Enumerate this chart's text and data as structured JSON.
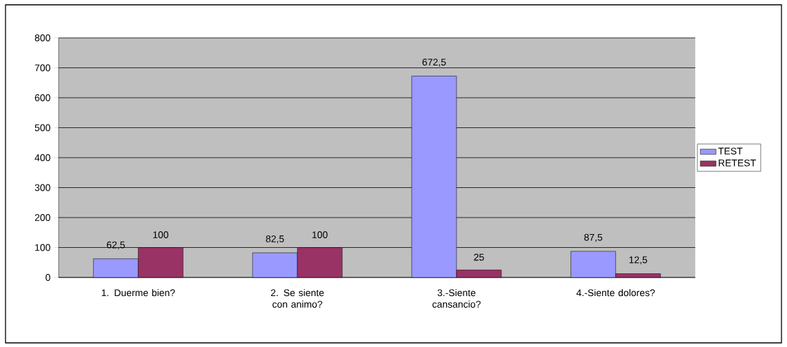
{
  "chart_data": {
    "type": "bar",
    "categories": [
      "1. Duerme bien?",
      "2. Se siente con animo?",
      "3.-Siente cansancio?",
      "4.-Siente dolores?"
    ],
    "series": [
      {
        "name": "TEST",
        "color": "#9999ff",
        "values": [
          62.5,
          82.5,
          672.5,
          87.5
        ],
        "value_labels": [
          "62,5",
          "82,5",
          "672,5",
          "87,5"
        ]
      },
      {
        "name": "RETEST",
        "color": "#993366",
        "values": [
          100,
          100,
          25,
          12.5
        ],
        "value_labels": [
          "100",
          "100",
          "25",
          "12,5"
        ]
      }
    ],
    "ylim": [
      0,
      800
    ],
    "yticks": [
      0,
      100,
      200,
      300,
      400,
      500,
      600,
      700,
      800
    ],
    "grid": "y",
    "legend": "right"
  }
}
